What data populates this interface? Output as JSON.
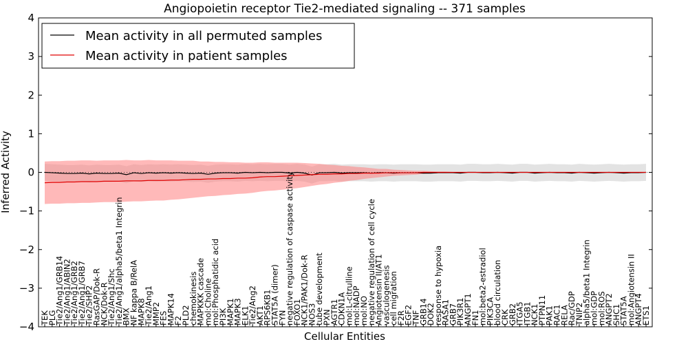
{
  "chart_data": {
    "type": "line",
    "title": "Angiopoietin receptor Tie2-mediated signaling -- 371 samples",
    "xlabel": "Cellular Entities",
    "ylabel": "Inferred Activity",
    "ylim": [
      -4,
      4
    ],
    "yticks": [
      -4,
      -3,
      -2,
      -1,
      0,
      1,
      2,
      3,
      4
    ],
    "legend_position": "top-left",
    "colors": {
      "permuted_line": "#000000",
      "patient_line": "#e00000",
      "permuted_band": "#c8c8c8",
      "patient_band": "#ff8080"
    },
    "categories": [
      "TEK",
      "PLG",
      "Tie2/Ang1/GRB14",
      "Tie2/Ang1/ABIN2",
      "Tie2/Ang1/GRB2",
      "Tie2/Ang1/GRB7",
      "Tie2/SHP2",
      "RasGAP/Dok-R",
      "NCK/Dok-R",
      "Tie2/Ang1/Shc",
      "Tie2/Ang1/alpha5/beta1 Integrin",
      "BMX",
      "NF kappa B/RelA",
      "MAPK8",
      "Tie2/Ang1",
      "MMP2",
      "FES",
      "MAPK14",
      "F2",
      "PLD2",
      "chemokinesis",
      "MAPKKK cascade",
      "mol:Choline",
      "mol:Phosphatidic acid",
      "PI3K",
      "MAPK1",
      "MAPK3",
      "ELK1",
      "Tie2/Ang2",
      "AKT1",
      "RPS6KB1",
      "STAT5A (dimer)",
      "FYN",
      "negative regulation of caspase activity",
      "FOXO1",
      "NCK1/PAK1/Dok-R",
      "NOS3",
      "tube development",
      "PXN",
      "AGTR1",
      "CDKN1A",
      "mol:L-citrulline",
      "mol:NADP",
      "mol:NO",
      "negative regulation of cell cycle",
      "Angiotensin II/AT1",
      "vasculogenesis",
      "cell migration",
      "F2R",
      "EGF2",
      "TNF",
      "GRB14",
      "DOK2",
      "response to hypoxia",
      "RASA1",
      "GRB7",
      "PIK3R1",
      "ANGPT1",
      "FN1",
      "mol:beta2-estradiol",
      "PIK3CA",
      "blood circulation",
      "CRK",
      "GRB2",
      "ITGA5",
      "ITGB1",
      "NCK1",
      "PTPN11",
      "PAK1",
      "RAC1",
      "RELA",
      "Rac/GDP",
      "TNIP2",
      "alpha5/beta1 Integrin",
      "mol:GDP",
      "mol:ROS",
      "ANGPT2",
      "SHC1",
      "STAT5A",
      "mol:Angiotensin II",
      "ANGPT4",
      "ETS1"
    ],
    "series": [
      {
        "name": "Mean activity in all permuted samples",
        "values": [
          0.0,
          -0.01,
          -0.02,
          -0.03,
          -0.03,
          -0.02,
          -0.04,
          -0.02,
          -0.03,
          -0.03,
          -0.02,
          -0.06,
          -0.01,
          -0.03,
          -0.01,
          -0.02,
          -0.01,
          -0.02,
          -0.01,
          -0.02,
          -0.03,
          -0.02,
          -0.05,
          -0.02,
          -0.01,
          -0.01,
          -0.02,
          0.0,
          -0.01,
          0.0,
          -0.01,
          0.0,
          0.0,
          -0.02,
          0.0,
          -0.02,
          -0.07,
          -0.01,
          -0.01,
          0.0,
          -0.02,
          -0.01,
          -0.01,
          -0.01,
          -0.02,
          -0.01,
          -0.01,
          -0.02,
          -0.01,
          -0.01,
          -0.01,
          -0.02,
          -0.02,
          -0.01,
          -0.01,
          -0.01,
          -0.02,
          0.0,
          0.0,
          -0.01,
          -0.01,
          0.0,
          -0.01,
          -0.02,
          0.0,
          0.0,
          -0.02,
          -0.01,
          0.0,
          -0.01,
          -0.01,
          -0.02,
          0.0,
          -0.01,
          -0.02,
          -0.01,
          0.0,
          -0.01,
          -0.02,
          -0.01,
          -0.01,
          0.0
        ],
        "band": 0.22
      },
      {
        "name": "Mean activity in patient samples",
        "values": [
          -0.27,
          -0.26,
          -0.26,
          -0.25,
          -0.25,
          -0.24,
          -0.24,
          -0.24,
          -0.23,
          -0.23,
          -0.23,
          -0.22,
          -0.22,
          -0.22,
          -0.21,
          -0.21,
          -0.21,
          -0.2,
          -0.2,
          -0.19,
          -0.18,
          -0.18,
          -0.17,
          -0.17,
          -0.16,
          -0.16,
          -0.15,
          -0.15,
          -0.14,
          -0.12,
          -0.11,
          -0.11,
          -0.1,
          -0.09,
          -0.08,
          -0.07,
          -0.06,
          -0.05,
          -0.05,
          -0.04,
          -0.04,
          -0.03,
          -0.03,
          -0.02,
          -0.02,
          -0.02,
          -0.01,
          -0.01,
          -0.01,
          -0.01,
          -0.01,
          0.0,
          0.0,
          0.0,
          0.0,
          0.0,
          0.0,
          0.0,
          0.0,
          0.0,
          0.0,
          0.0,
          0.0,
          0.0,
          0.0,
          0.0,
          0.0,
          0.0,
          0.0,
          0.0,
          0.0,
          0.0,
          0.0,
          0.0,
          0.0,
          0.0,
          0.0,
          0.0,
          0.0,
          0.0,
          0.0,
          0.0
        ],
        "band": [
          0.55,
          0.55,
          0.55,
          0.55,
          0.55,
          0.55,
          0.55,
          0.54,
          0.54,
          0.54,
          0.54,
          0.54,
          0.53,
          0.53,
          0.53,
          0.52,
          0.52,
          0.51,
          0.5,
          0.49,
          0.48,
          0.46,
          0.45,
          0.44,
          0.43,
          0.42,
          0.41,
          0.4,
          0.39,
          0.38,
          0.37,
          0.36,
          0.35,
          0.34,
          0.33,
          0.31,
          0.29,
          0.27,
          0.25,
          0.23,
          0.21,
          0.19,
          0.17,
          0.15,
          0.13,
          0.11,
          0.1,
          0.08,
          0.07,
          0.06,
          0.05,
          0.04,
          0.03,
          0.02,
          0.02,
          0.01,
          0.01,
          0.01,
          0.01,
          0.01,
          0.01,
          0.01,
          0.01,
          0.01,
          0.01,
          0.01,
          0.01,
          0.01,
          0.01,
          0.01,
          0.01,
          0.01,
          0.01,
          0.01,
          0.01,
          0.01,
          0.01,
          0.01,
          0.01,
          0.01,
          0.01,
          0.01
        ]
      }
    ]
  }
}
